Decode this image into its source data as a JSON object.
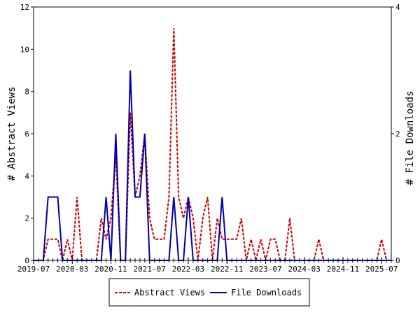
{
  "chart_data": {
    "type": "line",
    "xlabel": "",
    "ylabel_left": "# Abstract Views",
    "ylabel_right": "# File Downloads",
    "ylim_left": [
      0,
      12
    ],
    "yticks_left": [
      0,
      2,
      4,
      6,
      8,
      10,
      12
    ],
    "ylim_right": [
      0,
      4
    ],
    "yticks_right": [
      0,
      2,
      4
    ],
    "x_start": "2019-07",
    "x_end": "2025-09",
    "xtick_labels": [
      "2019-07",
      "2020-03",
      "2020-11",
      "2021-07",
      "2022-03",
      "2022-11",
      "2023-07",
      "2024-03",
      "2024-11",
      "2025-07"
    ],
    "legend_position": "bottom",
    "grid": false,
    "series": [
      {
        "name": "Abstract Views",
        "axis": "left",
        "color": "#cc0000",
        "style": "dashed",
        "values": [
          0,
          0,
          0,
          1,
          1,
          1,
          0,
          1,
          0,
          3,
          0,
          0,
          0,
          0,
          2,
          1,
          2,
          5,
          0,
          0,
          7,
          3,
          4,
          6,
          2,
          1,
          1,
          1,
          3,
          11,
          3,
          2,
          3,
          2,
          0,
          2,
          3,
          0,
          2,
          1,
          1,
          1,
          1,
          2,
          0,
          1,
          0,
          1,
          0,
          1,
          1,
          0,
          0,
          2,
          0,
          0,
          0,
          0,
          0,
          1,
          0,
          0,
          0,
          0,
          0,
          0,
          0,
          0,
          0,
          0,
          0,
          0,
          1,
          0,
          0
        ]
      },
      {
        "name": "File Downloads",
        "axis": "right",
        "color": "#0000aa",
        "style": "solid",
        "values": [
          0,
          0,
          0,
          1,
          1,
          1,
          0,
          0,
          0,
          0,
          0,
          0,
          0,
          0,
          0,
          1,
          0,
          2,
          0,
          0,
          3,
          1,
          1,
          2,
          0,
          0,
          0,
          0,
          0,
          1,
          0,
          0,
          1,
          0,
          0,
          0,
          0,
          0,
          0,
          1,
          0,
          0,
          0,
          0,
          0,
          0,
          0,
          0,
          0,
          0,
          0,
          0,
          0,
          0,
          0,
          0,
          0,
          0,
          0,
          0,
          0,
          0,
          0,
          0,
          0,
          0,
          0,
          0,
          0,
          0,
          0,
          0,
          0,
          0,
          0
        ]
      }
    ]
  }
}
